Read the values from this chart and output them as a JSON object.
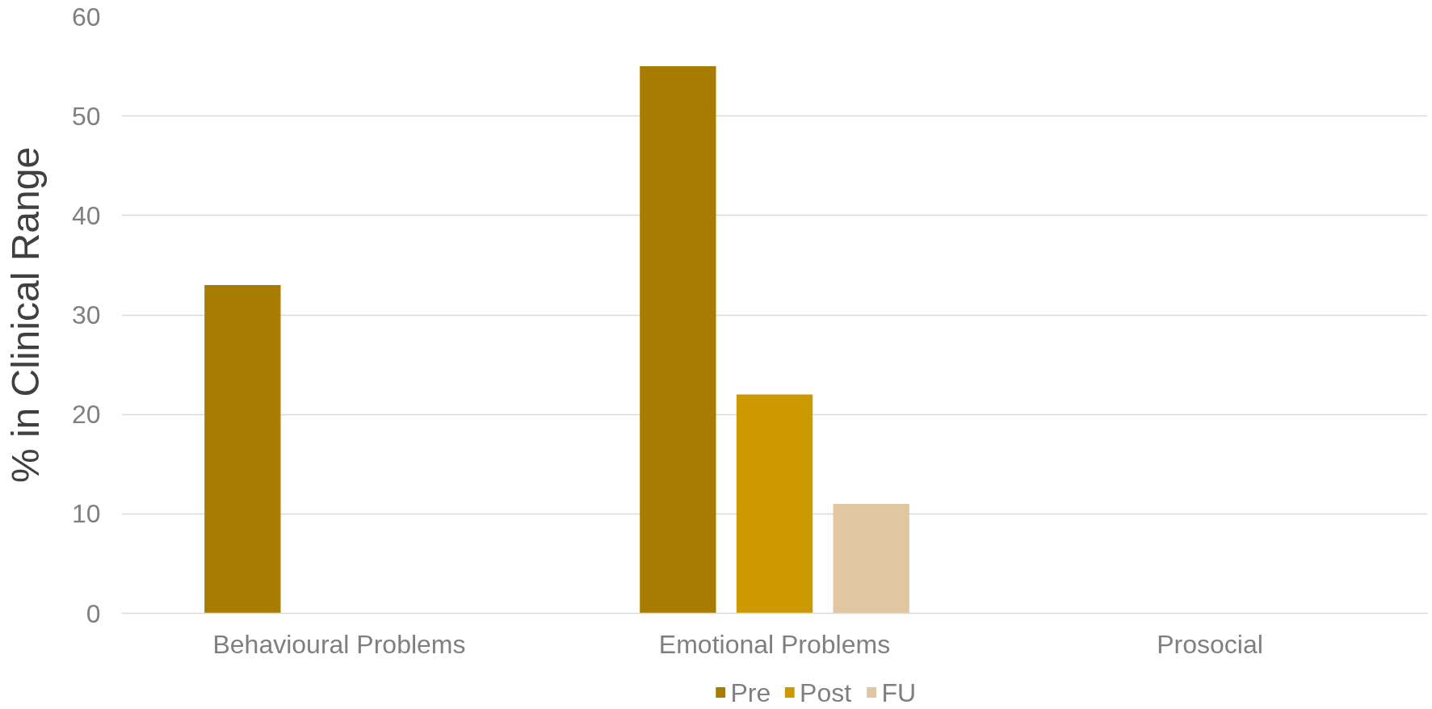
{
  "chart_data": {
    "type": "bar",
    "ylabel": "% in Clinical Range",
    "categories": [
      "Behavioural Problems",
      "Emotional Problems",
      "Prosocial"
    ],
    "series": [
      {
        "name": "Pre",
        "color": "#a87c00",
        "values": [
          33,
          55,
          0
        ]
      },
      {
        "name": "Post",
        "color": "#cc9900",
        "values": [
          0,
          22,
          0
        ]
      },
      {
        "name": "FU",
        "color": "#e1c6a2",
        "values": [
          0,
          11,
          0
        ]
      }
    ],
    "ylim": [
      0,
      60
    ],
    "yticks": [
      0,
      10,
      20,
      30,
      40,
      50,
      60
    ],
    "grid": "y",
    "legend": "bottom"
  }
}
